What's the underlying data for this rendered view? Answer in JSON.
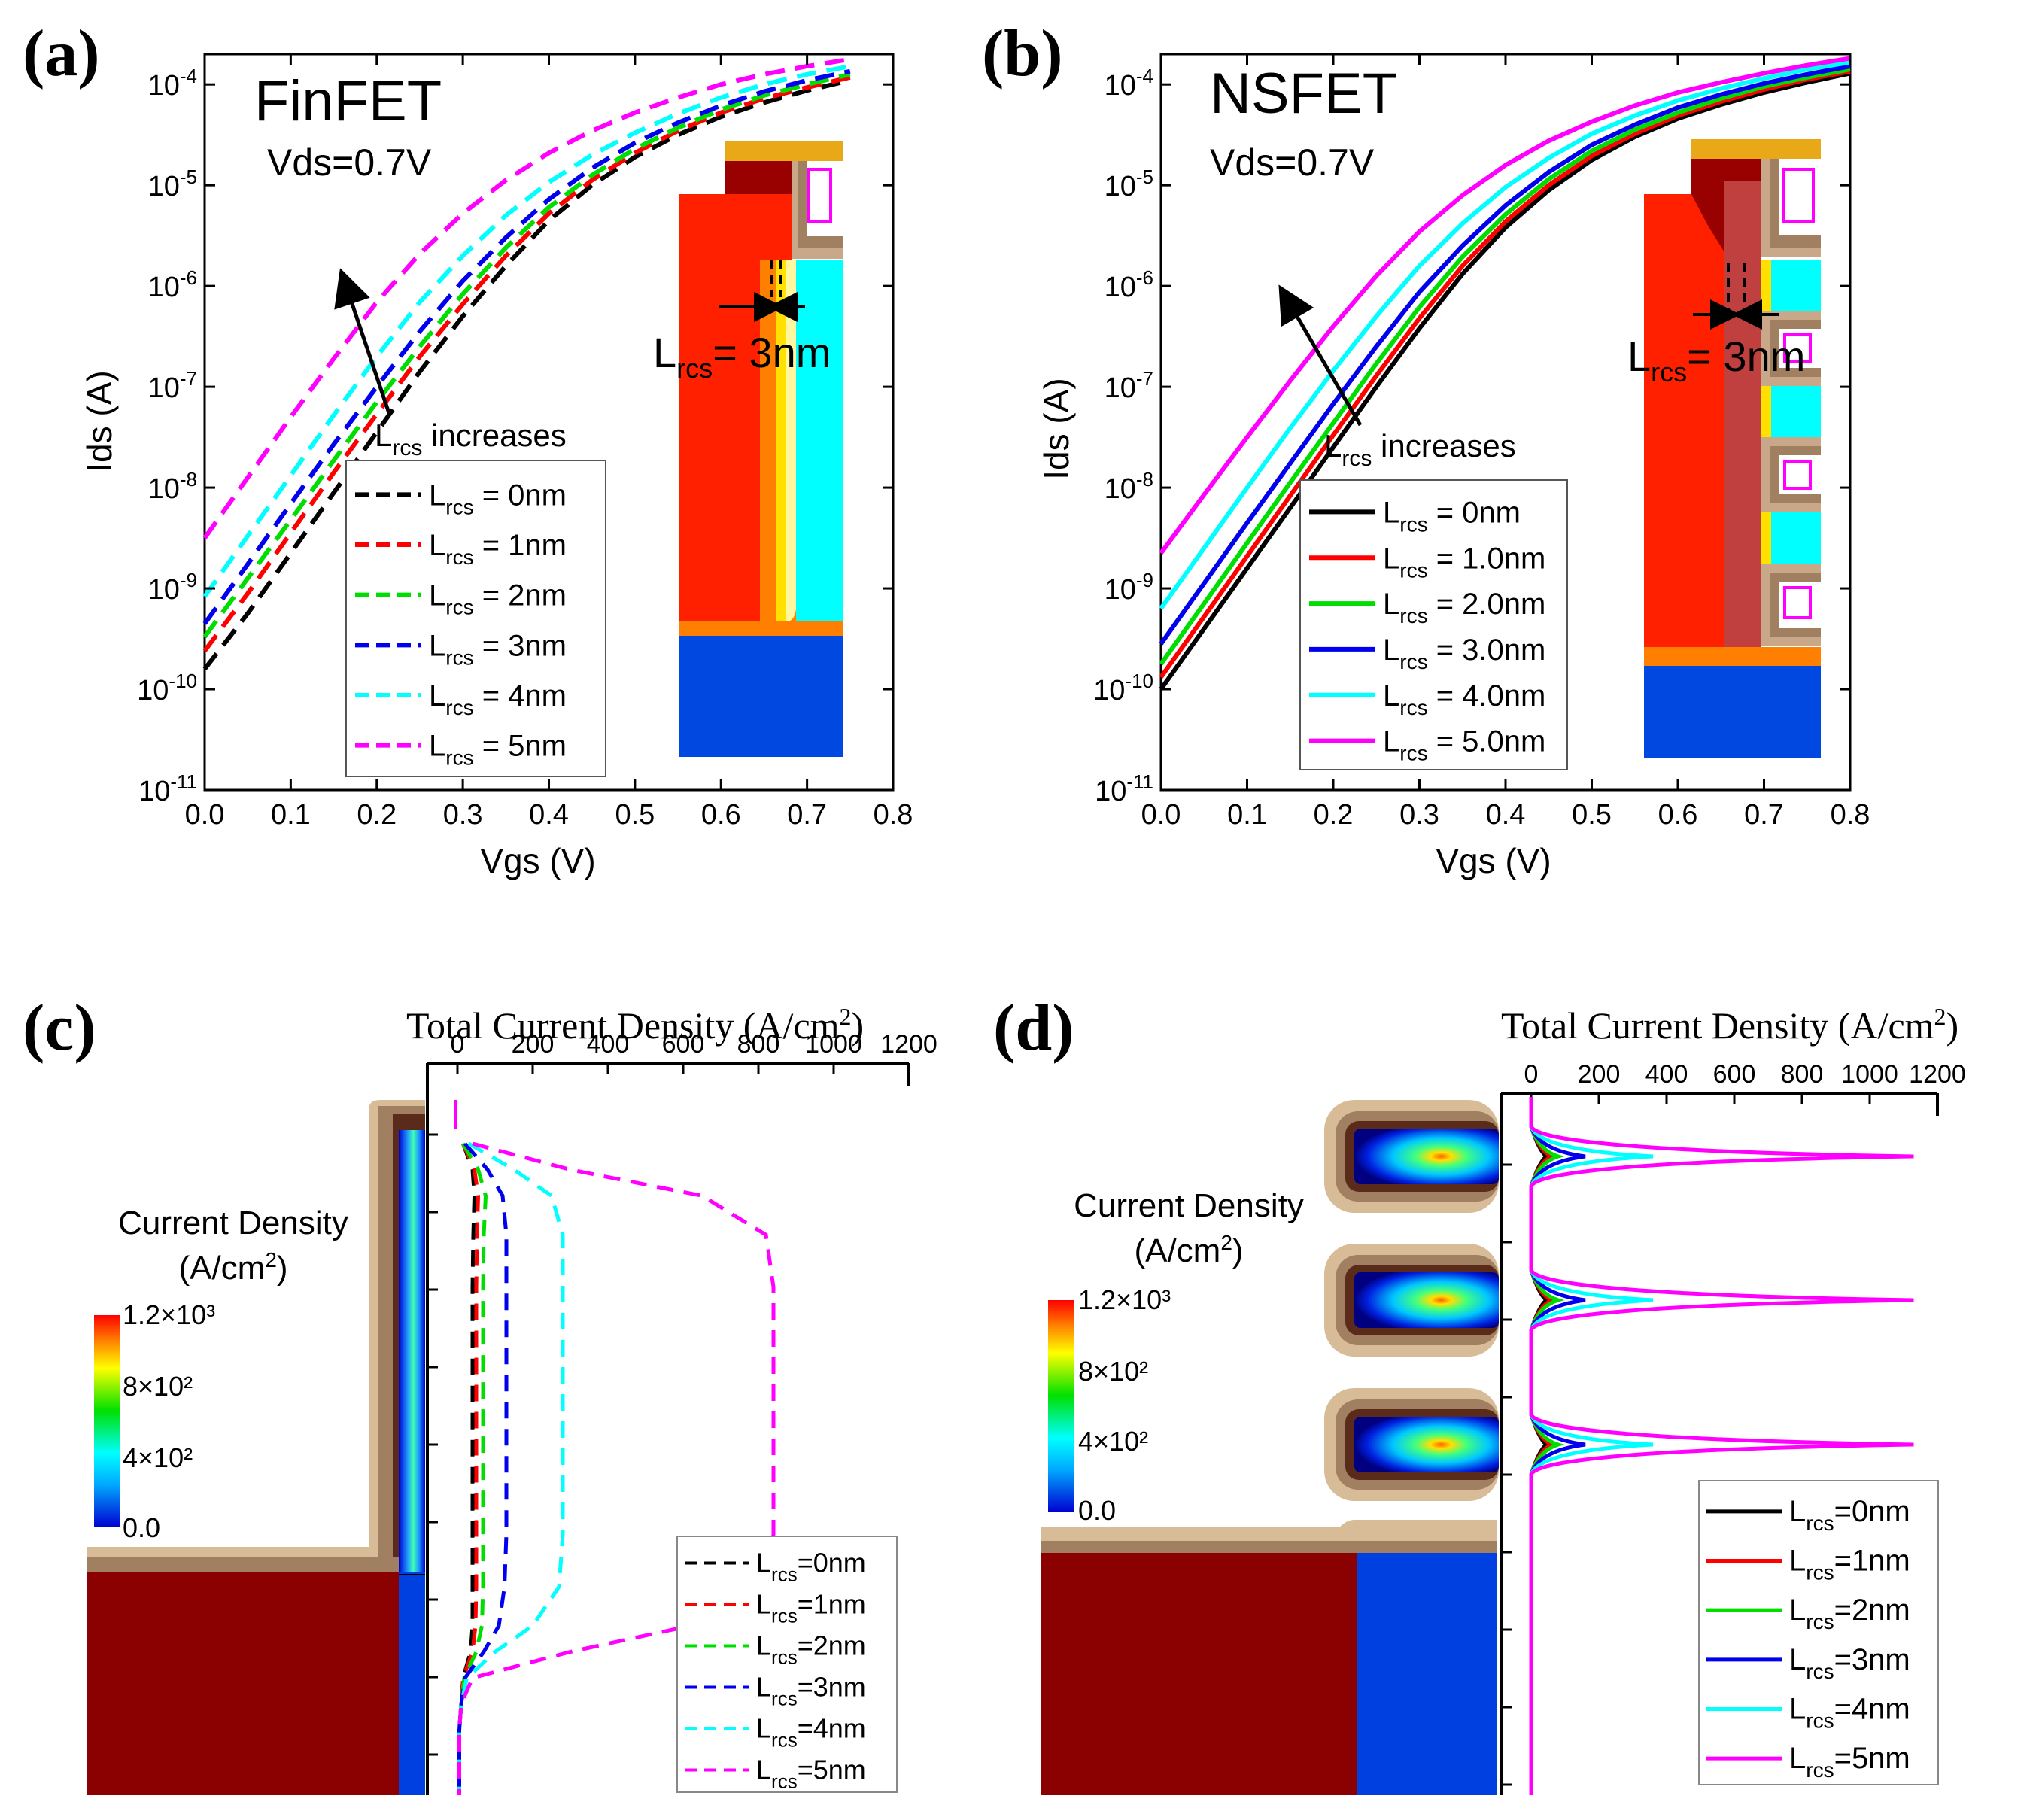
{
  "chart_data": [
    {
      "panel": "(a)",
      "type": "line",
      "title": "FinFET",
      "subtitle": "Vds=0.7V",
      "xlabel": "Vgs (V)",
      "ylabel": "Ids (A)",
      "xlim": [
        0.0,
        0.8
      ],
      "ylim_log10": [
        -11,
        -3.7
      ],
      "yscale": "log",
      "x_ticks": [
        "0.0",
        "0.1",
        "0.2",
        "0.3",
        "0.4",
        "0.5",
        "0.6",
        "0.7",
        "0.8"
      ],
      "y_ticks": [
        -11,
        -10,
        -9,
        -8,
        -7,
        -6,
        -5,
        -4
      ],
      "line_style": "dashed",
      "annotation": "increases",
      "inset_label": "= 3nm",
      "legend_prefix": "L",
      "legend_sub": "rcs",
      "x": [
        0.0,
        0.05,
        0.1,
        0.15,
        0.2,
        0.25,
        0.3,
        0.35,
        0.4,
        0.45,
        0.5,
        0.55,
        0.6,
        0.65,
        0.7,
        0.75
      ],
      "series": [
        {
          "name": "= 0nm",
          "color": "#000000",
          "log_values": [
            -9.8,
            -9.25,
            -8.65,
            -8.05,
            -7.45,
            -6.85,
            -6.3,
            -5.8,
            -5.35,
            -5.0,
            -4.72,
            -4.5,
            -4.32,
            -4.18,
            -4.06,
            -3.96
          ]
        },
        {
          "name": "= 1nm",
          "color": "#ff0000",
          "log_values": [
            -9.62,
            -9.05,
            -8.45,
            -7.85,
            -7.27,
            -6.7,
            -6.18,
            -5.7,
            -5.28,
            -4.95,
            -4.68,
            -4.46,
            -4.28,
            -4.14,
            -4.03,
            -3.93
          ]
        },
        {
          "name": "= 2nm",
          "color": "#00dd00",
          "log_values": [
            -9.48,
            -8.9,
            -8.32,
            -7.73,
            -7.15,
            -6.6,
            -6.08,
            -5.62,
            -5.22,
            -4.9,
            -4.64,
            -4.43,
            -4.25,
            -4.11,
            -4.0,
            -3.9
          ]
        },
        {
          "name": "= 3nm",
          "color": "#0000ee",
          "log_values": [
            -9.35,
            -8.76,
            -8.16,
            -7.57,
            -7.0,
            -6.45,
            -5.95,
            -5.52,
            -5.14,
            -4.83,
            -4.58,
            -4.38,
            -4.21,
            -4.07,
            -3.96,
            -3.87
          ]
        },
        {
          "name": "= 4nm",
          "color": "#00ffff",
          "log_values": [
            -9.08,
            -8.48,
            -7.88,
            -7.28,
            -6.7,
            -6.16,
            -5.7,
            -5.3,
            -4.97,
            -4.7,
            -4.48,
            -4.29,
            -4.13,
            -4.0,
            -3.9,
            -3.82
          ]
        },
        {
          "name": "= 5nm",
          "color": "#ff00ff",
          "log_values": [
            -8.5,
            -7.9,
            -7.3,
            -6.72,
            -6.16,
            -5.68,
            -5.28,
            -4.95,
            -4.68,
            -4.46,
            -4.28,
            -4.13,
            -4.0,
            -3.9,
            -3.82,
            -3.75
          ]
        }
      ]
    },
    {
      "panel": "(b)",
      "type": "line",
      "title": "NSFET",
      "subtitle": "Vds=0.7V",
      "xlabel": "Vgs (V)",
      "ylabel": "Ids (A)",
      "xlim": [
        0.0,
        0.8
      ],
      "ylim_log10": [
        -11,
        -3.7
      ],
      "yscale": "log",
      "x_ticks": [
        "0.0",
        "0.1",
        "0.2",
        "0.3",
        "0.4",
        "0.5",
        "0.6",
        "0.7",
        "0.8"
      ],
      "y_ticks": [
        -11,
        -10,
        -9,
        -8,
        -7,
        -6,
        -5,
        -4
      ],
      "line_style": "solid",
      "annotation": "increases",
      "inset_label": "= 3nm",
      "legend_prefix": "L",
      "legend_sub": "rcs",
      "x": [
        0.0,
        0.05,
        0.1,
        0.15,
        0.2,
        0.25,
        0.3,
        0.35,
        0.4,
        0.45,
        0.5,
        0.55,
        0.6,
        0.65,
        0.7,
        0.75,
        0.8
      ],
      "series": [
        {
          "name": "= 0nm",
          "color": "#000000",
          "log_values": [
            -10.0,
            -9.4,
            -8.8,
            -8.2,
            -7.6,
            -7.0,
            -6.42,
            -5.88,
            -5.42,
            -5.05,
            -4.75,
            -4.52,
            -4.34,
            -4.2,
            -4.08,
            -3.98,
            -3.89
          ]
        },
        {
          "name": "= 1.0nm",
          "color": "#ff0000",
          "log_values": [
            -9.88,
            -9.28,
            -8.68,
            -8.08,
            -7.48,
            -6.89,
            -6.32,
            -5.8,
            -5.36,
            -5.0,
            -4.71,
            -4.49,
            -4.31,
            -4.17,
            -4.05,
            -3.95,
            -3.87
          ]
        },
        {
          "name": "= 2.0nm",
          "color": "#00dd00",
          "log_values": [
            -9.75,
            -9.15,
            -8.55,
            -7.95,
            -7.36,
            -6.77,
            -6.21,
            -5.71,
            -5.29,
            -4.94,
            -4.66,
            -4.45,
            -4.28,
            -4.14,
            -4.02,
            -3.93,
            -3.85
          ]
        },
        {
          "name": "= 3.0nm",
          "color": "#0000ee",
          "log_values": [
            -9.55,
            -8.95,
            -8.35,
            -7.76,
            -7.17,
            -6.6,
            -6.06,
            -5.6,
            -5.2,
            -4.87,
            -4.6,
            -4.4,
            -4.23,
            -4.1,
            -3.99,
            -3.9,
            -3.82
          ]
        },
        {
          "name": "= 4.0nm",
          "color": "#00ffff",
          "log_values": [
            -9.2,
            -8.6,
            -8.0,
            -7.41,
            -6.84,
            -6.3,
            -5.8,
            -5.38,
            -5.02,
            -4.73,
            -4.49,
            -4.31,
            -4.16,
            -4.04,
            -3.94,
            -3.85,
            -3.78
          ]
        },
        {
          "name": "= 5.0nm",
          "color": "#ff00ff",
          "log_values": [
            -8.65,
            -8.07,
            -7.5,
            -6.94,
            -6.4,
            -5.9,
            -5.46,
            -5.1,
            -4.8,
            -4.56,
            -4.37,
            -4.21,
            -4.08,
            -3.98,
            -3.89,
            -3.81,
            -3.74
          ]
        }
      ]
    },
    {
      "panel": "(c)",
      "type": "line",
      "title": "Total Current Density (A/cm",
      "title_unit_sup": "2",
      "xlim": [
        0,
        1200
      ],
      "x_ticks": [
        "0",
        "200",
        "400",
        "600",
        "800",
        "1000",
        "1200"
      ],
      "line_style": "dashed",
      "colorbar_title": "Current Density",
      "colorbar_unit": "(A/cm",
      "colorbar_ticks": [
        "1.2×10³",
        "8×10²",
        "4×10²",
        "0.0"
      ],
      "legend_prefix": "L",
      "legend_sub": "rcs",
      "y_frac": [
        0.0,
        0.04,
        0.08,
        0.14,
        0.22,
        0.3,
        0.4,
        0.5,
        0.6,
        0.68,
        0.74,
        0.78,
        0.82,
        0.86,
        0.9,
        1.0
      ],
      "series": [
        {
          "name": "=0nm",
          "color": "#000000",
          "values": [
            15,
            40,
            45,
            42,
            40,
            40,
            40,
            40,
            40,
            40,
            40,
            35,
            15,
            10,
            5,
            5
          ]
        },
        {
          "name": "=1nm",
          "color": "#ff0000",
          "values": [
            15,
            45,
            55,
            52,
            50,
            50,
            50,
            50,
            50,
            50,
            48,
            40,
            15,
            10,
            5,
            5
          ]
        },
        {
          "name": "=2nm",
          "color": "#00dd00",
          "values": [
            15,
            55,
            75,
            70,
            68,
            68,
            68,
            68,
            68,
            68,
            65,
            50,
            18,
            10,
            5,
            5
          ]
        },
        {
          "name": "=3nm",
          "color": "#0000ee",
          "values": [
            20,
            80,
            120,
            130,
            130,
            130,
            130,
            130,
            130,
            125,
            110,
            70,
            20,
            10,
            5,
            5
          ]
        },
        {
          "name": "=4nm",
          "color": "#00ffff",
          "values": [
            30,
            150,
            250,
            280,
            280,
            280,
            280,
            280,
            280,
            270,
            200,
            100,
            25,
            10,
            5,
            5
          ]
        },
        {
          "name": "=5nm",
          "color": "#ff00ff",
          "values": [
            40,
            300,
            650,
            820,
            840,
            840,
            840,
            840,
            840,
            810,
            620,
            300,
            40,
            10,
            5,
            5
          ]
        }
      ]
    },
    {
      "panel": "(d)",
      "type": "line",
      "title": "Total Current Density (A/cm",
      "title_unit_sup": "2",
      "xlim": [
        0,
        1200
      ],
      "x_ticks": [
        "0",
        "200",
        "400",
        "600",
        "800",
        "1000",
        "1200"
      ],
      "line_style": "solid",
      "colorbar_title": "Current Density",
      "colorbar_unit": "(A/cm",
      "colorbar_ticks": [
        "1.2×10³",
        "8×10²",
        "4×10²",
        "0.0"
      ],
      "legend_prefix": "L",
      "legend_sub": "rcs",
      "peak_values": [
        45,
        60,
        80,
        160,
        360,
        1130
      ],
      "series": [
        {
          "name": "=0nm",
          "color": "#000000",
          "peak": 45
        },
        {
          "name": "=1nm",
          "color": "#ff0000",
          "peak": 60
        },
        {
          "name": "=2nm",
          "color": "#00dd00",
          "peak": 80
        },
        {
          "name": "=3nm",
          "color": "#0000ee",
          "peak": 160
        },
        {
          "name": "=4nm",
          "color": "#00ffff",
          "peak": 360
        },
        {
          "name": "=5nm",
          "color": "#ff00ff",
          "peak": 1130
        }
      ]
    }
  ]
}
